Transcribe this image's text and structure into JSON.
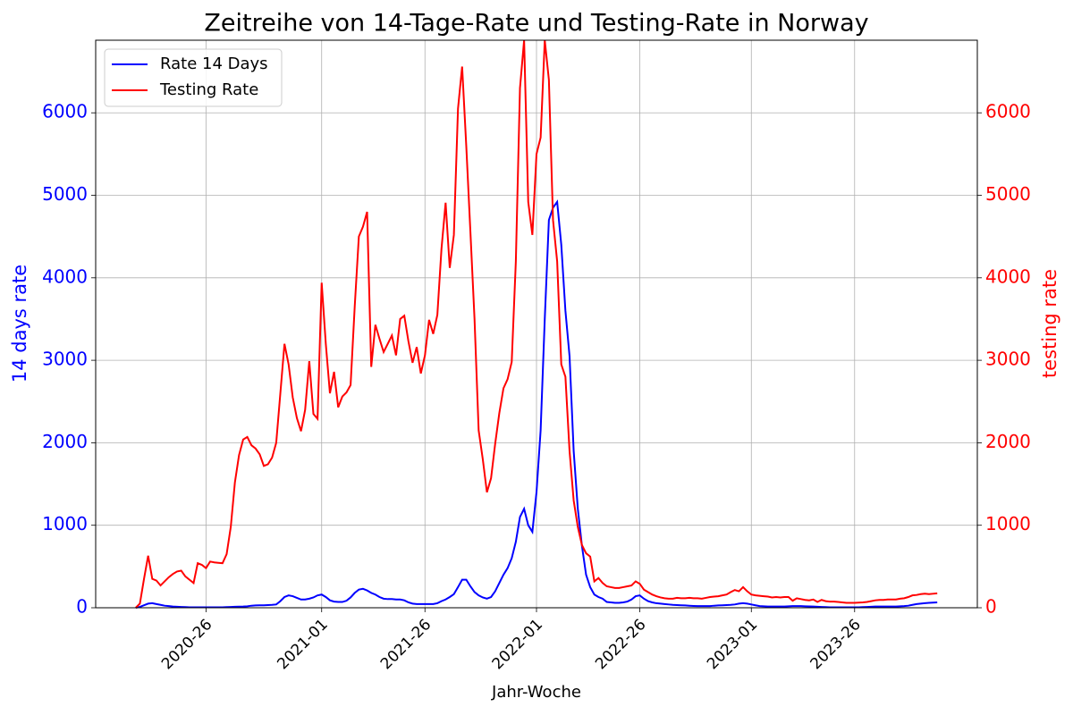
{
  "chart_data": {
    "type": "line",
    "title": "Zeitreihe von 14-Tage-Rate und Testing-Rate in Norway",
    "x_label": "Jahr-Woche",
    "y_label": "14 days rate",
    "y2_label": "testing rate",
    "x": [
      "2020-09",
      "2020-10",
      "2020-11",
      "2020-12",
      "2020-13",
      "2020-14",
      "2020-15",
      "2020-16",
      "2020-17",
      "2020-18",
      "2020-19",
      "2020-20",
      "2020-21",
      "2020-22",
      "2020-23",
      "2020-24",
      "2020-25",
      "2020-26",
      "2020-27",
      "2020-28",
      "2020-29",
      "2020-30",
      "2020-31",
      "2020-32",
      "2020-33",
      "2020-34",
      "2020-35",
      "2020-36",
      "2020-37",
      "2020-38",
      "2020-39",
      "2020-40",
      "2020-41",
      "2020-42",
      "2020-43",
      "2020-44",
      "2020-45",
      "2020-46",
      "2020-47",
      "2020-48",
      "2020-49",
      "2020-50",
      "2020-51",
      "2020-52",
      "2020-53",
      "2021-01",
      "2021-02",
      "2021-03",
      "2021-04",
      "2021-05",
      "2021-06",
      "2021-07",
      "2021-08",
      "2021-09",
      "2021-10",
      "2021-11",
      "2021-12",
      "2021-13",
      "2021-14",
      "2021-15",
      "2021-16",
      "2021-17",
      "2021-18",
      "2021-19",
      "2021-20",
      "2021-21",
      "2021-22",
      "2021-23",
      "2021-24",
      "2021-25",
      "2021-26",
      "2021-27",
      "2021-28",
      "2021-29",
      "2021-30",
      "2021-31",
      "2021-32",
      "2021-33",
      "2021-34",
      "2021-35",
      "2021-36",
      "2021-37",
      "2021-38",
      "2021-39",
      "2021-40",
      "2021-41",
      "2021-42",
      "2021-43",
      "2021-44",
      "2021-45",
      "2021-46",
      "2021-47",
      "2021-48",
      "2021-49",
      "2021-50",
      "2021-51",
      "2021-52",
      "2022-01",
      "2022-02",
      "2022-03",
      "2022-04",
      "2022-05",
      "2022-06",
      "2022-07",
      "2022-08",
      "2022-09",
      "2022-10",
      "2022-11",
      "2022-12",
      "2022-13",
      "2022-14",
      "2022-15",
      "2022-16",
      "2022-17",
      "2022-18",
      "2022-19",
      "2022-20",
      "2022-21",
      "2022-22",
      "2022-23",
      "2022-24",
      "2022-25",
      "2022-26",
      "2022-27",
      "2022-28",
      "2022-29",
      "2022-30",
      "2022-31",
      "2022-32",
      "2022-33",
      "2022-34",
      "2022-35",
      "2022-36",
      "2022-37",
      "2022-38",
      "2022-39",
      "2022-40",
      "2022-41",
      "2022-42",
      "2022-43",
      "2022-44",
      "2022-45",
      "2022-46",
      "2022-47",
      "2022-48",
      "2022-49",
      "2022-50",
      "2022-51",
      "2022-52",
      "2023-01",
      "2023-02",
      "2023-03",
      "2023-04",
      "2023-05",
      "2023-06",
      "2023-07",
      "2023-08",
      "2023-09",
      "2023-10",
      "2023-11",
      "2023-12",
      "2023-13",
      "2023-14",
      "2023-15",
      "2023-16",
      "2023-17",
      "2023-18",
      "2023-19",
      "2023-20",
      "2023-21",
      "2023-22",
      "2023-23",
      "2023-24",
      "2023-25",
      "2023-26",
      "2023-27",
      "2023-28",
      "2023-29",
      "2023-30",
      "2023-31",
      "2023-32",
      "2023-33",
      "2023-34",
      "2023-35",
      "2023-36",
      "2023-37",
      "2023-38",
      "2023-39",
      "2023-40",
      "2023-41",
      "2023-42",
      "2023-43",
      "2023-44",
      "2023-45",
      "2023-46"
    ],
    "xticks": [
      "2020-26",
      "2021-01",
      "2021-26",
      "2022-01",
      "2022-26",
      "2023-01",
      "2023-26"
    ],
    "series": [
      {
        "name": "Rate 14 Days",
        "color": "#0000ff",
        "axis": "y",
        "values": [
          0,
          10,
          30,
          50,
          55,
          45,
          35,
          25,
          20,
          15,
          12,
          10,
          8,
          6,
          5,
          5,
          5,
          5,
          5,
          5,
          5,
          6,
          8,
          10,
          12,
          14,
          15,
          18,
          25,
          28,
          30,
          30,
          32,
          35,
          40,
          80,
          130,
          150,
          140,
          120,
          100,
          100,
          110,
          125,
          150,
          160,
          130,
          90,
          75,
          70,
          70,
          85,
          125,
          180,
          220,
          230,
          210,
          180,
          160,
          130,
          110,
          105,
          105,
          100,
          100,
          90,
          65,
          50,
          45,
          45,
          45,
          45,
          45,
          55,
          80,
          100,
          130,
          165,
          250,
          340,
          340,
          260,
          190,
          150,
          125,
          110,
          130,
          200,
          300,
          400,
          480,
          600,
          800,
          1100,
          1200,
          1000,
          920,
          1400,
          2150,
          3500,
          4700,
          4850,
          4920,
          4400,
          3600,
          3050,
          1900,
          1200,
          750,
          400,
          250,
          160,
          130,
          110,
          70,
          65,
          60,
          60,
          65,
          75,
          100,
          140,
          150,
          110,
          80,
          65,
          55,
          50,
          45,
          40,
          35,
          33,
          30,
          28,
          25,
          22,
          20,
          20,
          20,
          20,
          25,
          28,
          30,
          33,
          35,
          40,
          50,
          55,
          50,
          40,
          30,
          20,
          18,
          15,
          15,
          15,
          15,
          15,
          18,
          20,
          20,
          20,
          18,
          16,
          15,
          12,
          10,
          8,
          6,
          5,
          5,
          5,
          5,
          5,
          5,
          6,
          8,
          10,
          12,
          15,
          15,
          15,
          15,
          15,
          15,
          18,
          20,
          25,
          35,
          45,
          50,
          55,
          60,
          62,
          65
        ]
      },
      {
        "name": "Testing Rate",
        "color": "#ff0000",
        "axis": "y2",
        "values": [
          0,
          50,
          350,
          630,
          350,
          330,
          270,
          320,
          370,
          410,
          440,
          450,
          380,
          340,
          300,
          540,
          520,
          480,
          560,
          550,
          545,
          540,
          650,
          980,
          1520,
          1850,
          2040,
          2070,
          1970,
          1930,
          1860,
          1720,
          1740,
          1820,
          2000,
          2600,
          3200,
          2950,
          2550,
          2300,
          2140,
          2400,
          2990,
          2350,
          2290,
          3940,
          3200,
          2600,
          2860,
          2430,
          2560,
          2610,
          2700,
          3650,
          4500,
          4620,
          4800,
          2920,
          3430,
          3260,
          3100,
          3200,
          3300,
          3060,
          3500,
          3540,
          3230,
          2970,
          3160,
          2840,
          3060,
          3490,
          3320,
          3550,
          4350,
          4910,
          4120,
          4520,
          6050,
          6560,
          5600,
          4560,
          3500,
          2150,
          1800,
          1400,
          1570,
          1990,
          2360,
          2660,
          2770,
          2980,
          4200,
          6300,
          6880,
          4920,
          4520,
          5500,
          5700,
          6880,
          6400,
          4700,
          4200,
          2950,
          2800,
          1900,
          1300,
          980,
          760,
          660,
          620,
          320,
          360,
          300,
          260,
          250,
          240,
          240,
          250,
          260,
          270,
          320,
          290,
          220,
          190,
          160,
          140,
          125,
          115,
          110,
          110,
          120,
          115,
          115,
          120,
          115,
          115,
          110,
          120,
          130,
          135,
          140,
          150,
          160,
          190,
          215,
          200,
          250,
          200,
          160,
          150,
          145,
          140,
          135,
          125,
          130,
          125,
          130,
          130,
          85,
          115,
          105,
          95,
          90,
          100,
          70,
          95,
          80,
          75,
          75,
          70,
          65,
          60,
          60,
          60,
          62,
          65,
          70,
          80,
          90,
          95,
          95,
          100,
          100,
          100,
          110,
          115,
          130,
          150,
          155,
          165,
          170,
          165,
          170,
          175
        ]
      }
    ],
    "ylim": [
      0,
      6880
    ],
    "yticks": [
      0,
      1000,
      2000,
      3000,
      4000,
      5000,
      6000
    ],
    "y2lim": [
      0,
      6880
    ],
    "y2ticks": [
      0,
      1000,
      2000,
      3000,
      4000,
      5000,
      6000
    ],
    "grid": true,
    "legend": "upper left"
  }
}
